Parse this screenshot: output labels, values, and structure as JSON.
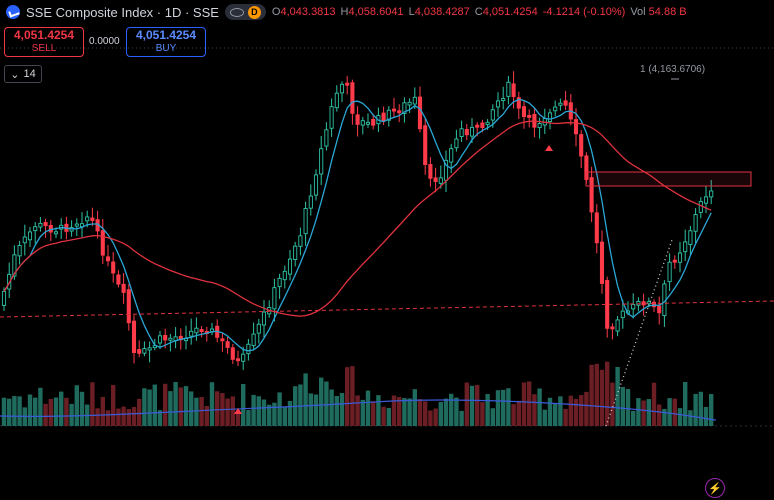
{
  "header": {
    "title": "SSE Composite Index · 1D · SSE",
    "badge": "D",
    "ohlc": [
      {
        "label": "O",
        "value": "4,043.3813"
      },
      {
        "label": "H",
        "value": "4,058.6041"
      },
      {
        "label": "L",
        "value": "4,038.4287"
      },
      {
        "label": "C",
        "value": "4,051.4254"
      }
    ],
    "change": "-4.1214 (-0.10%)",
    "volume_label": "Vol",
    "volume": "54.88 B"
  },
  "trade": {
    "sell_price": "4,051.4254",
    "sell_label": "SELL",
    "spread": "0.0000",
    "buy_price": "4,051.4254",
    "buy_label": "BUY"
  },
  "indicator_toggle": "14",
  "annotation": "1 (4,163.6706)",
  "colors": {
    "up": "#2ec4a6",
    "down": "#ff3b4a",
    "ma_short": "#2aa7d6",
    "ma_long": "#e0323f",
    "volume_ma": "#3a5bd9",
    "dotted_trend": "#cfcfcf"
  },
  "icons": [
    "index-logo-icon",
    "eye-icon",
    "chevron-down-icon",
    "lightning-icon"
  ]
}
